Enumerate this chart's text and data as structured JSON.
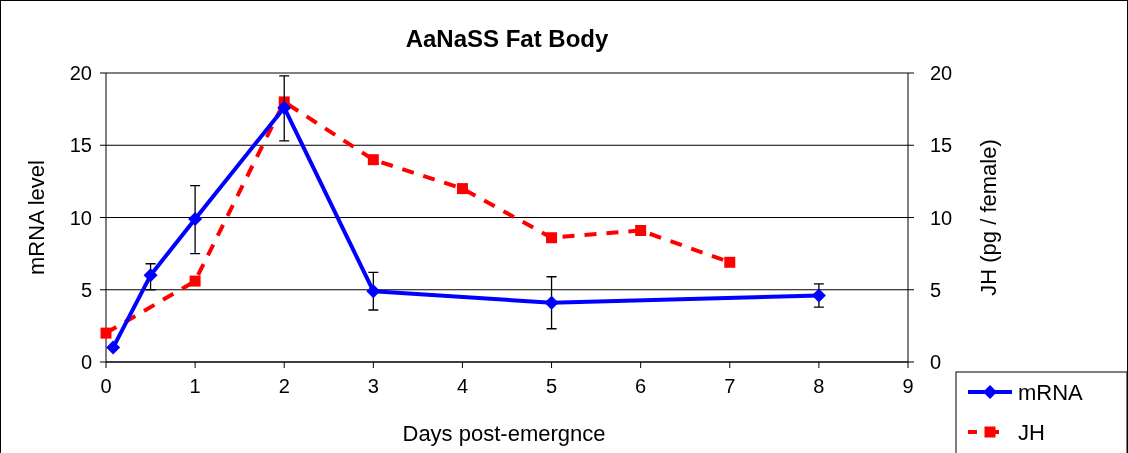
{
  "chart_data": {
    "type": "line",
    "title": "AaNaSS Fat Body",
    "xlabel": "Days post-emergnce",
    "ylabel": "mRNA level",
    "y2label": "JH (pg / female)",
    "xlim": [
      0,
      9
    ],
    "xticks": [
      0,
      1,
      2,
      3,
      4,
      5,
      6,
      7,
      8,
      9
    ],
    "ylim": [
      0,
      20
    ],
    "yticks": [
      0,
      5,
      10,
      15,
      20
    ],
    "y2lim": [
      0,
      20
    ],
    "y2ticks": [
      0,
      5,
      10,
      15,
      20
    ],
    "grid": "y",
    "legend": "bottom right",
    "series": [
      {
        "name": "mRNA",
        "color": "#0000ff",
        "marker": "diamond",
        "line_style": "solid",
        "x": [
          0.08,
          0.5,
          1,
          2,
          3,
          5,
          8
        ],
        "values": [
          1.0,
          6.0,
          9.9,
          17.6,
          4.9,
          4.1,
          4.6
        ],
        "errors": [
          null,
          [
            5.0,
            6.8
          ],
          [
            7.5,
            12.2
          ],
          [
            15.3,
            19.8
          ],
          [
            3.6,
            6.2
          ],
          [
            2.3,
            5.9
          ],
          [
            3.8,
            5.4
          ]
        ]
      },
      {
        "name": "JH",
        "color": "#ff0000",
        "marker": "square",
        "line_style": "dashed",
        "axis": "y2",
        "x": [
          0,
          1,
          2,
          3,
          4,
          5,
          6,
          7
        ],
        "values": [
          2.0,
          5.6,
          18.0,
          14.0,
          12.0,
          8.6,
          9.1,
          6.9
        ]
      }
    ]
  }
}
